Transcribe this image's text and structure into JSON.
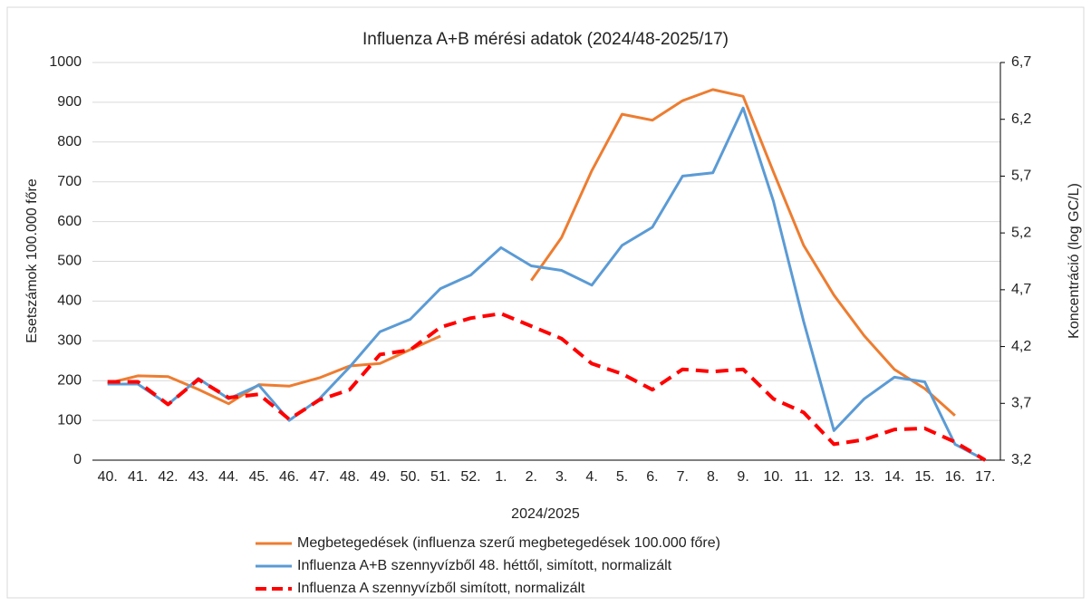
{
  "chart_data": {
    "type": "line",
    "title": "Influenza A+B mérési adatok (2024/48-2025/17)",
    "x_label": "2024/2025",
    "y_label": "Esetszámok 100.000 főre",
    "y2_label": "Koncentráció (log GC/L)",
    "categories": [
      "40.",
      "41.",
      "42.",
      "43.",
      "44.",
      "45.",
      "46.",
      "47.",
      "48.",
      "49.",
      "50.",
      "51.",
      "52.",
      "1.",
      "2.",
      "3.",
      "4.",
      "5.",
      "6.",
      "7.",
      "8.",
      "9.",
      "10.",
      "11.",
      "12.",
      "13.",
      "14.",
      "15.",
      "16.",
      "17."
    ],
    "ylim": [
      0,
      1000
    ],
    "yticks": [
      0,
      100,
      200,
      300,
      400,
      500,
      600,
      700,
      800,
      900,
      1000
    ],
    "y2lim": [
      3.2,
      6.7
    ],
    "y2ticks": [
      {
        "value": 3.2,
        "label": "3,2"
      },
      {
        "value": 3.7,
        "label": "3,7"
      },
      {
        "value": 4.2,
        "label": "4,2"
      },
      {
        "value": 4.7,
        "label": "4,7"
      },
      {
        "value": 5.2,
        "label": "5,2"
      },
      {
        "value": 5.7,
        "label": "5,7"
      },
      {
        "value": 6.2,
        "label": "6,2"
      },
      {
        "value": 6.7,
        "label": "6,7"
      }
    ],
    "grid": true,
    "series": [
      {
        "name": "Megbetegedések (influenza szerű megbetegedések 100.000 főre)",
        "color": "#ed7d31",
        "dashed": false,
        "values": [
          193,
          212,
          210,
          178,
          142,
          190,
          186,
          207,
          237,
          243,
          278,
          312,
          null,
          null,
          452,
          560,
          728,
          870,
          855,
          904,
          932,
          915,
          725,
          540,
          415,
          313,
          228,
          180,
          112,
          null
        ]
      },
      {
        "name": "Influenza A+B szennyvízből 48. héttől, simított, normalizált",
        "color": "#5b9bd5",
        "dashed": false,
        "axis": "y2",
        "values": [
          3.87,
          3.87,
          3.69,
          3.92,
          3.74,
          3.86,
          3.55,
          3.74,
          4.02,
          4.33,
          4.44,
          4.71,
          4.83,
          5.07,
          4.91,
          4.87,
          4.74,
          5.09,
          5.25,
          5.7,
          5.73,
          6.3,
          5.48,
          4.42,
          3.46,
          3.74,
          3.93,
          3.89,
          3.34,
          3.2
        ]
      },
      {
        "name": "Influenza A szennyvízből simított, normalizált",
        "color": "#ff0000",
        "dashed": true,
        "axis": "y2",
        "values": [
          3.89,
          3.89,
          3.69,
          3.91,
          3.75,
          3.78,
          3.56,
          3.73,
          3.82,
          4.13,
          4.17,
          4.37,
          4.45,
          4.49,
          4.38,
          4.27,
          4.05,
          3.96,
          3.82,
          4.0,
          3.98,
          4.0,
          3.74,
          3.62,
          3.34,
          3.38,
          3.47,
          3.48,
          3.36,
          3.2
        ]
      }
    ]
  }
}
